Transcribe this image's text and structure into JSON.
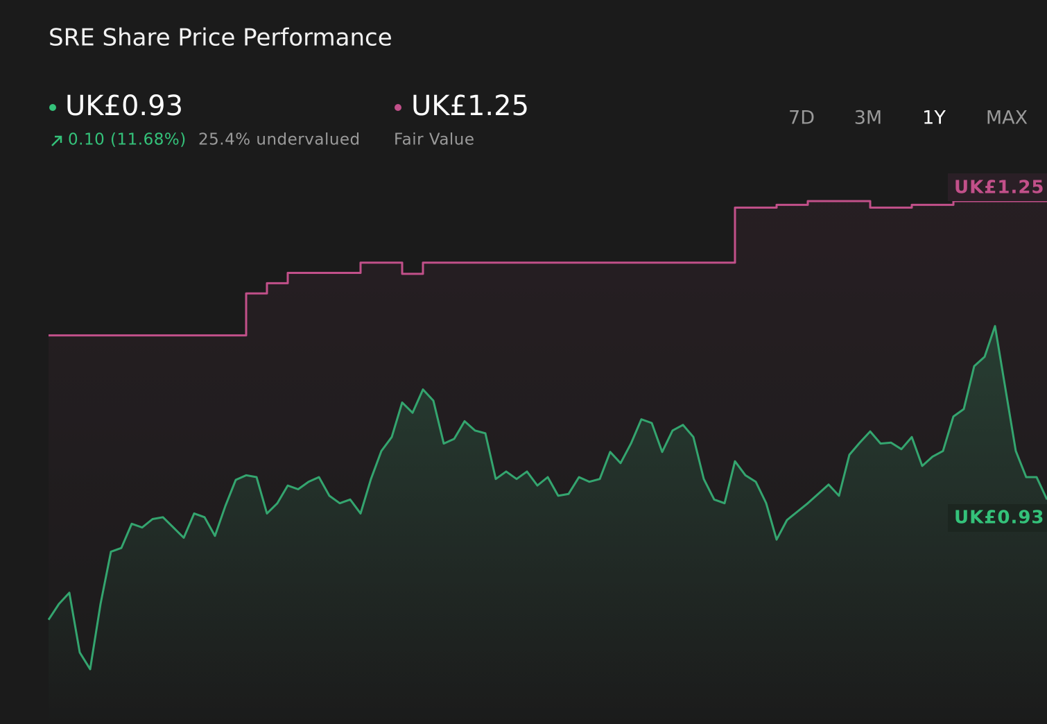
{
  "chart_data": {
    "type": "line",
    "title": "SRE Share Price Performance",
    "change": "0.10 (11.68%)",
    "valuation": "25.4% undervalued",
    "periods": [
      "7D",
      "3M",
      "1Y",
      "MAX"
    ],
    "active_period": "1Y",
    "series": [
      {
        "color": "#34a56f",
        "last_label": "UK£0.93",
        "values": [
          0.801,
          0.818,
          0.83,
          0.766,
          0.748,
          0.818,
          0.874,
          0.878,
          0.904,
          0.9,
          0.909,
          0.911,
          0.9,
          0.889,
          0.915,
          0.911,
          0.891,
          0.923,
          0.951,
          0.956,
          0.954,
          0.915,
          0.926,
          0.945,
          0.941,
          0.949,
          0.954,
          0.934,
          0.926,
          0.93,
          0.915,
          0.952,
          0.982,
          0.997,
          1.034,
          1.023,
          1.048,
          1.036,
          0.99,
          0.995,
          1.014,
          1.004,
          1.001,
          0.952,
          0.96,
          0.952,
          0.96,
          0.945,
          0.954,
          0.934,
          0.936,
          0.954,
          0.949,
          0.952,
          0.981,
          0.969,
          0.99,
          1.016,
          1.012,
          0.981,
          1.004,
          1.01,
          0.997,
          0.952,
          0.93,
          0.926,
          0.971,
          0.956,
          0.949,
          0.926,
          0.887,
          0.908,
          0.917,
          0.926,
          0.936,
          0.946,
          0.934,
          0.978,
          0.991,
          1.003,
          0.99,
          0.991,
          0.984,
          0.997,
          0.966,
          0.976,
          0.982,
          1.019,
          1.027,
          1.073,
          1.083,
          1.116,
          1.049,
          0.982,
          0.954,
          0.954,
          0.93
        ]
      },
      {
        "name": "Fair Value",
        "color": "#c2508a",
        "last_label": "UK£1.25",
        "values": [
          1.106,
          1.106,
          1.106,
          1.106,
          1.106,
          1.106,
          1.106,
          1.106,
          1.106,
          1.106,
          1.106,
          1.106,
          1.106,
          1.106,
          1.106,
          1.106,
          1.106,
          1.106,
          1.106,
          1.151,
          1.151,
          1.162,
          1.162,
          1.173,
          1.173,
          1.173,
          1.173,
          1.173,
          1.173,
          1.173,
          1.184,
          1.184,
          1.184,
          1.184,
          1.172,
          1.172,
          1.184,
          1.184,
          1.184,
          1.184,
          1.184,
          1.184,
          1.184,
          1.184,
          1.184,
          1.184,
          1.184,
          1.184,
          1.184,
          1.184,
          1.184,
          1.184,
          1.184,
          1.184,
          1.184,
          1.184,
          1.184,
          1.184,
          1.184,
          1.184,
          1.184,
          1.184,
          1.184,
          1.184,
          1.184,
          1.184,
          1.243,
          1.243,
          1.243,
          1.243,
          1.246,
          1.246,
          1.246,
          1.25,
          1.25,
          1.25,
          1.25,
          1.25,
          1.25,
          1.243,
          1.243,
          1.243,
          1.243,
          1.246,
          1.246,
          1.246,
          1.246,
          1.25,
          1.25,
          1.25,
          1.25,
          1.25,
          1.25,
          1.25,
          1.25,
          1.25,
          1.25
        ]
      }
    ]
  }
}
